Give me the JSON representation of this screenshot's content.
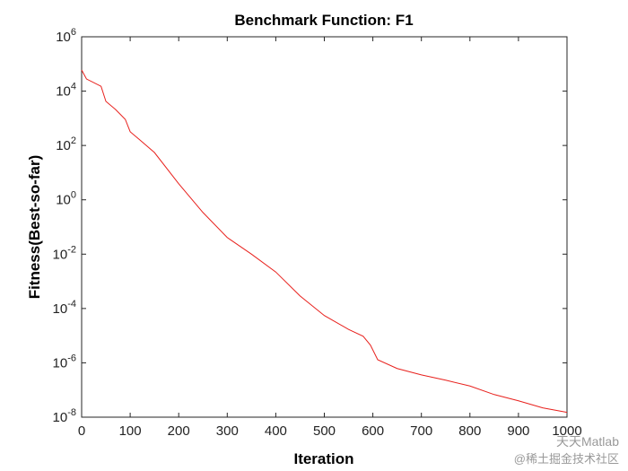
{
  "chart_data": {
    "type": "line",
    "title": "Benchmark Function: F1",
    "x_label": "Iteration",
    "y_label": "Fitness(Best-so-far)",
    "y_scale": "log",
    "grid": false,
    "x": [
      0,
      10,
      40,
      50,
      70,
      90,
      100,
      120,
      150,
      200,
      250,
      300,
      350,
      400,
      450,
      500,
      550,
      580,
      595,
      610,
      650,
      700,
      750,
      800,
      850,
      900,
      950,
      1000
    ],
    "series": [
      {
        "name": "F1",
        "color": "#e8201c",
        "values": [
          60000,
          28000,
          15000,
          4200,
          2100,
          910,
          320,
          160,
          55,
          3.9,
          0.34,
          0.041,
          0.01,
          0.0022,
          0.00029,
          5.5e-05,
          1.7e-05,
          9.5e-06,
          4.5e-06,
          1.3e-06,
          6.2e-07,
          3.6e-07,
          2.3e-07,
          1.4e-07,
          6.8e-08,
          4e-08,
          2.2e-08,
          1.5e-08
        ]
      }
    ],
    "xlim": [
      0,
      1000
    ],
    "xticks": [
      0,
      100,
      200,
      300,
      400,
      500,
      600,
      700,
      800,
      900,
      1000
    ],
    "ylim": [
      1e-08,
      1000000
    ],
    "yticks": [
      {
        "value": 1e-08,
        "label": "10^-8"
      },
      {
        "value": 1e-06,
        "label": "10^-6"
      },
      {
        "value": 0.0001,
        "label": "10^-4"
      },
      {
        "value": 0.01,
        "label": "10^-2"
      },
      {
        "value": 1,
        "label": "10^0"
      },
      {
        "value": 100,
        "label": "10^2"
      },
      {
        "value": 10000,
        "label": "10^4"
      },
      {
        "value": 1000000,
        "label": "10^6"
      }
    ],
    "watermark": [
      "天天Matlab",
      "@稀土掘金技术社区"
    ]
  }
}
